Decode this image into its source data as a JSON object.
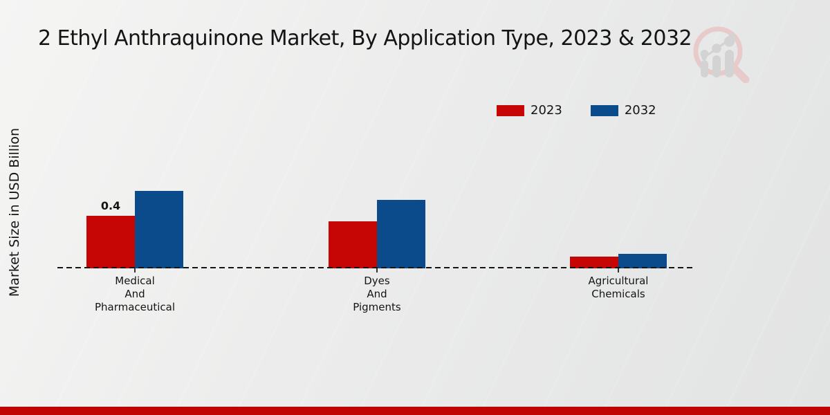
{
  "page": {
    "footer_bar_color": "#c00404",
    "background_light": "#f5f5f4",
    "background_dark": "#e2e3e3"
  },
  "header": {
    "title": "2 Ethyl Anthraquinone Market, By Application Type, 2023 & 2032"
  },
  "logo": {
    "icon": "magnifier-bar-chart-watermark",
    "ring_color": "#e8caca",
    "bars_color": "#d3d3d3"
  },
  "chart_data": {
    "type": "bar",
    "title": "2 Ethyl Anthraquinone Market, By Application Type, 2023 & 2032",
    "xlabel": "",
    "ylabel": "Market Size in USD Billion",
    "categories": [
      [
        "Medical",
        "And",
        "Pharmaceutical"
      ],
      [
        "Dyes",
        "And",
        "Pigments"
      ],
      [
        "Agricultural",
        "Chemicals"
      ]
    ],
    "series": [
      {
        "name": "2023",
        "color": "#c60505",
        "values": [
          0.4,
          0.36,
          0.09
        ]
      },
      {
        "name": "2032",
        "color": "#0b4a8b",
        "values": [
          0.59,
          0.52,
          0.11
        ]
      }
    ],
    "bar_labels": [
      {
        "series_index": 0,
        "category_index": 0,
        "text": "0.4"
      }
    ],
    "ylim": [
      0,
      0.75
    ],
    "grid": false,
    "baseline_style": "dashed",
    "legend_position": "top-right",
    "y_axis_ticks_visible": false
  }
}
